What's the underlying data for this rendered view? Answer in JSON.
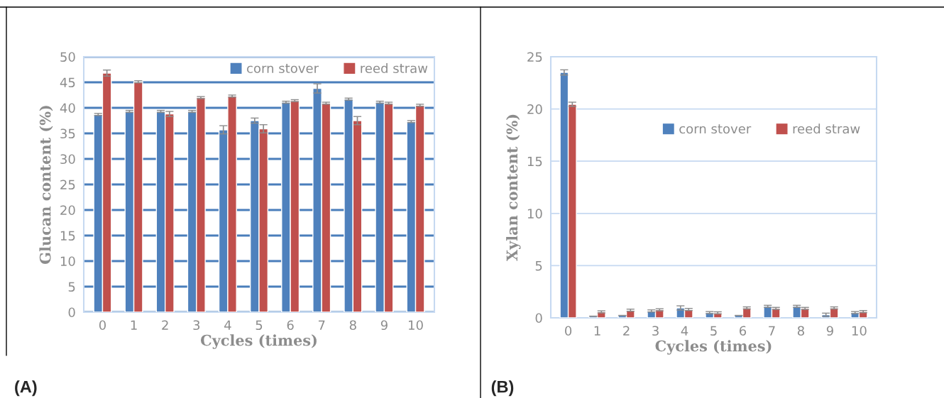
{
  "chart_data": [
    {
      "type": "bar",
      "xlabel": "Cycles (times)",
      "ylabel": "Glucan content (%)",
      "categories": [
        "0",
        "1",
        "2",
        "3",
        "4",
        "5",
        "6",
        "7",
        "8",
        "9",
        "10"
      ],
      "series": [
        {
          "name": "corn stover",
          "color": "#4f81bd",
          "values": [
            38.7,
            39.3,
            39.3,
            39.3,
            35.7,
            37.5,
            41.1,
            43.8,
            41.7,
            41.1,
            37.3
          ],
          "errors": [
            0.2,
            0.2,
            0.2,
            0.2,
            0.8,
            0.5,
            0.2,
            0.9,
            0.2,
            0.2,
            0.2
          ]
        },
        {
          "name": "reed straw",
          "color": "#c0504d",
          "values": [
            46.8,
            45.1,
            38.8,
            42.0,
            42.3,
            35.9,
            41.4,
            40.9,
            37.5,
            40.9,
            40.5
          ],
          "errors": [
            0.6,
            0.2,
            0.5,
            0.2,
            0.2,
            0.8,
            0.2,
            0.2,
            0.8,
            0.2,
            0.2
          ]
        }
      ],
      "ylim": [
        0,
        50
      ],
      "yticks": [
        0,
        5,
        10,
        15,
        20,
        25,
        30,
        35,
        40,
        45,
        50
      ],
      "grid": "y",
      "legend": "top right",
      "annotations": [
        "(A)"
      ]
    },
    {
      "type": "bar",
      "xlabel": "Cycles (times)",
      "ylabel": "Xylan content (%)",
      "categories": [
        "0",
        "1",
        "2",
        "3",
        "4",
        "5",
        "6",
        "7",
        "8",
        "9",
        "10"
      ],
      "series": [
        {
          "name": "corn stover",
          "color": "#4f81bd",
          "values": [
            23.5,
            0.16,
            0.23,
            0.66,
            0.95,
            0.5,
            0.23,
            1.1,
            1.1,
            0.3,
            0.5
          ],
          "errors": [
            0.25,
            null,
            null,
            0.1,
            0.2,
            0.1,
            null,
            0.1,
            0.1,
            0.15,
            0.1
          ]
        },
        {
          "name": "reed straw",
          "color": "#c0504d",
          "values": [
            20.45,
            0.57,
            0.73,
            0.77,
            0.8,
            0.48,
            0.95,
            0.9,
            0.9,
            0.95,
            0.6
          ],
          "errors": [
            0.2,
            0.1,
            0.1,
            0.1,
            0.1,
            0.1,
            0.1,
            0.1,
            0.1,
            0.1,
            0.1
          ]
        }
      ],
      "ylim": [
        0,
        25
      ],
      "yticks": [
        0,
        5,
        10,
        15,
        20,
        25
      ],
      "grid": "y",
      "legend": "right",
      "annotations": [
        "(B)"
      ]
    }
  ]
}
